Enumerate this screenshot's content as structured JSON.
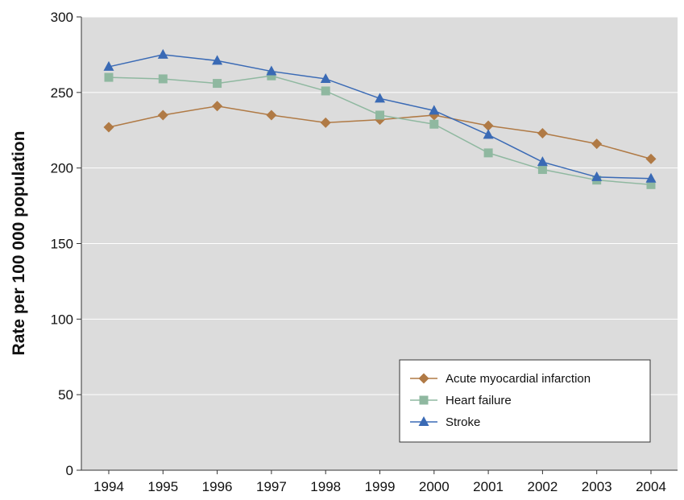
{
  "chart_data": {
    "type": "line",
    "title": "",
    "xlabel": "",
    "ylabel": "Rate per 100 000 population",
    "x": [
      "1994",
      "1995",
      "1996",
      "1997",
      "1998",
      "1999",
      "2000",
      "2001",
      "2002",
      "2003",
      "2004"
    ],
    "y_ticks": [
      "0",
      "50",
      "100",
      "150",
      "200",
      "250",
      "300"
    ],
    "ylim": [
      0,
      300
    ],
    "grid": "horizontal",
    "legend_position": "bottom-right",
    "plot_background": "#dcdcdc",
    "series": [
      {
        "name": "Acute myocardial infarction",
        "color": "#b07a45",
        "marker": "diamond",
        "values": [
          227,
          235,
          241,
          235,
          230,
          232,
          235,
          228,
          223,
          216,
          206
        ]
      },
      {
        "name": "Heart failure",
        "color": "#8fb8a0",
        "marker": "square",
        "values": [
          260,
          259,
          256,
          261,
          251,
          235,
          229,
          210,
          199,
          192,
          189
        ]
      },
      {
        "name": "Stroke",
        "color": "#3a6ab5",
        "marker": "triangle",
        "values": [
          267,
          275,
          271,
          264,
          259,
          246,
          238,
          222,
          204,
          194,
          193
        ]
      }
    ]
  }
}
